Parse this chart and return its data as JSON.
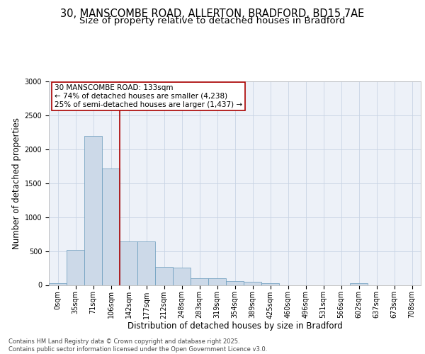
{
  "title_line1": "30, MANSCOMBE ROAD, ALLERTON, BRADFORD, BD15 7AE",
  "title_line2": "Size of property relative to detached houses in Bradford",
  "xlabel": "Distribution of detached houses by size in Bradford",
  "ylabel": "Number of detached properties",
  "bar_color": "#ccd9e8",
  "bar_edge_color": "#6699bb",
  "vline_color": "#aa0000",
  "vline_x": 4,
  "annotation_text": "30 MANSCOMBE ROAD: 133sqm\n← 74% of detached houses are smaller (4,238)\n25% of semi-detached houses are larger (1,437) →",
  "annotation_box_color": "#ffffff",
  "annotation_box_edge": "#aa0000",
  "categories": [
    "0sqm",
    "35sqm",
    "71sqm",
    "106sqm",
    "142sqm",
    "177sqm",
    "212sqm",
    "248sqm",
    "283sqm",
    "319sqm",
    "354sqm",
    "389sqm",
    "425sqm",
    "460sqm",
    "496sqm",
    "531sqm",
    "566sqm",
    "602sqm",
    "637sqm",
    "673sqm",
    "708sqm"
  ],
  "values": [
    25,
    520,
    2200,
    1720,
    640,
    640,
    270,
    260,
    100,
    100,
    60,
    50,
    30,
    0,
    0,
    0,
    0,
    30,
    0,
    0,
    0
  ],
  "ylim": [
    0,
    3000
  ],
  "yticks": [
    0,
    500,
    1000,
    1500,
    2000,
    2500,
    3000
  ],
  "grid_color": "#c8d4e4",
  "bg_color": "#edf1f8",
  "footer": "Contains HM Land Registry data © Crown copyright and database right 2025.\nContains public sector information licensed under the Open Government Licence v3.0.",
  "title_fontsize": 10.5,
  "subtitle_fontsize": 9.5,
  "tick_fontsize": 7,
  "label_fontsize": 8.5,
  "footer_fontsize": 6.0
}
